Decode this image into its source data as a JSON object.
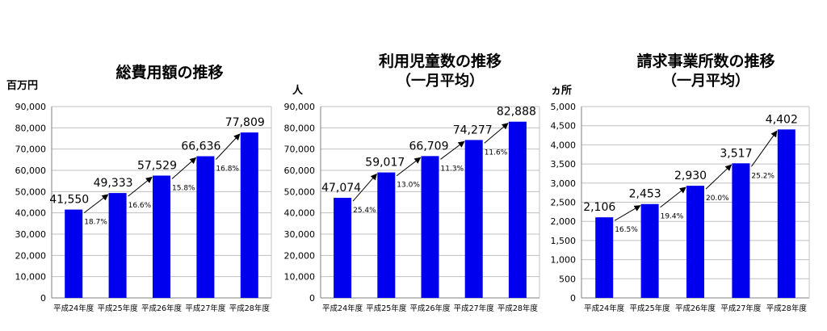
{
  "chart_data": [
    {
      "type": "bar",
      "title": "総費用額の推移",
      "subtitle": "",
      "unit_label": "百万円",
      "categories": [
        "平成24年度",
        "平成25年度",
        "平成26年度",
        "平成27年度",
        "平成28年度"
      ],
      "values": [
        41550,
        49333,
        57529,
        66636,
        77809
      ],
      "value_labels": [
        "41,550",
        "49,333",
        "57,529",
        "66,636",
        "77,809"
      ],
      "growth_labels": [
        "18.7%",
        "16.6%",
        "15.8%",
        "16.8%"
      ],
      "ylim": [
        0,
        90000
      ],
      "yticks": [
        "0",
        "10,000",
        "20,000",
        "30,000",
        "40,000",
        "50,000",
        "60,000",
        "70,000",
        "80,000",
        "90,000"
      ],
      "grid": true,
      "legend": "none"
    },
    {
      "type": "bar",
      "title": "利用児童数の推移",
      "subtitle": "（一月平均）",
      "unit_label": "人",
      "categories": [
        "平成24年度",
        "平成25年度",
        "平成26年度",
        "平成27年度",
        "平成28年度"
      ],
      "values": [
        47074,
        59017,
        66709,
        74277,
        82888
      ],
      "value_labels": [
        "47,074",
        "59,017",
        "66,709",
        "74,277",
        "82,888"
      ],
      "growth_labels": [
        "25.4%",
        "13.0%",
        "11.3%",
        "11.6%"
      ],
      "ylim": [
        0,
        90000
      ],
      "yticks": [
        "0",
        "10,000",
        "20,000",
        "30,000",
        "40,000",
        "50,000",
        "60,000",
        "70,000",
        "80,000",
        "90,000"
      ],
      "grid": true,
      "legend": "none"
    },
    {
      "type": "bar",
      "title": "請求事業所数の推移",
      "subtitle": "（一月平均）",
      "unit_label": "ヵ所",
      "categories": [
        "平成24年度",
        "平成25年度",
        "平成26年度",
        "平成27年度",
        "平成28年度"
      ],
      "values": [
        2106,
        2453,
        2930,
        3517,
        4402
      ],
      "value_labels": [
        "2,106",
        "2,453",
        "2,930",
        "3,517",
        "4,402"
      ],
      "growth_labels": [
        "16.5%",
        "19.4%",
        "20.0%",
        "25.2%"
      ],
      "ylim": [
        0,
        5000
      ],
      "yticks": [
        "0",
        "500",
        "1,000",
        "1,500",
        "2,000",
        "2,500",
        "3,000",
        "3,500",
        "4,000",
        "4,500",
        "5,000"
      ],
      "grid": true,
      "legend": "none"
    }
  ],
  "colors": {
    "bar": "#0000ee",
    "grid": "#c0c0c0",
    "axis": "#808080",
    "text": "#000000"
  }
}
